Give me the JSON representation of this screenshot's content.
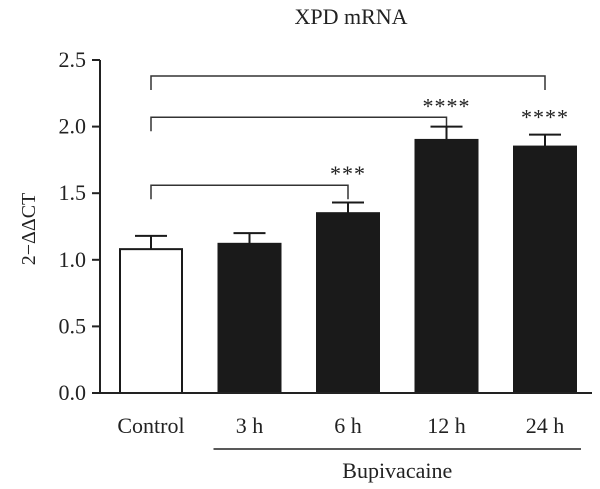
{
  "chart_data": {
    "type": "bar",
    "title": "XPD mRNA",
    "ylabel": "2−ΔΔCT",
    "xlabel": "",
    "categories": [
      "Control",
      "3 h",
      "6 h",
      "12 h",
      "24 h"
    ],
    "values": [
      1.08,
      1.12,
      1.35,
      1.9,
      1.85
    ],
    "errors": [
      0.1,
      0.08,
      0.08,
      0.1,
      0.09
    ],
    "bar_fills": [
      "#ffffff",
      "#1a1a1a",
      "#1a1a1a",
      "#1a1a1a",
      "#1a1a1a"
    ],
    "ylim": [
      0,
      2.5
    ],
    "yticks": [
      "0.0",
      "0.5",
      "1.0",
      "1.5",
      "2.0",
      "2.5"
    ],
    "ytick_values": [
      0,
      0.5,
      1.0,
      1.5,
      2.0,
      2.5
    ],
    "grid": false,
    "group_label": {
      "text": "Bupivacaine",
      "from": 1,
      "to": 4
    },
    "significance": [
      {
        "from": 0,
        "to": 2,
        "level": 1.56,
        "label": "***"
      },
      {
        "from": 0,
        "to": 3,
        "level": 2.07,
        "label": "****"
      },
      {
        "from": 0,
        "to": 4,
        "level": 2.38,
        "label": ""
      }
    ],
    "bar_labels": [
      {
        "bar": 4,
        "label": "****"
      }
    ]
  }
}
